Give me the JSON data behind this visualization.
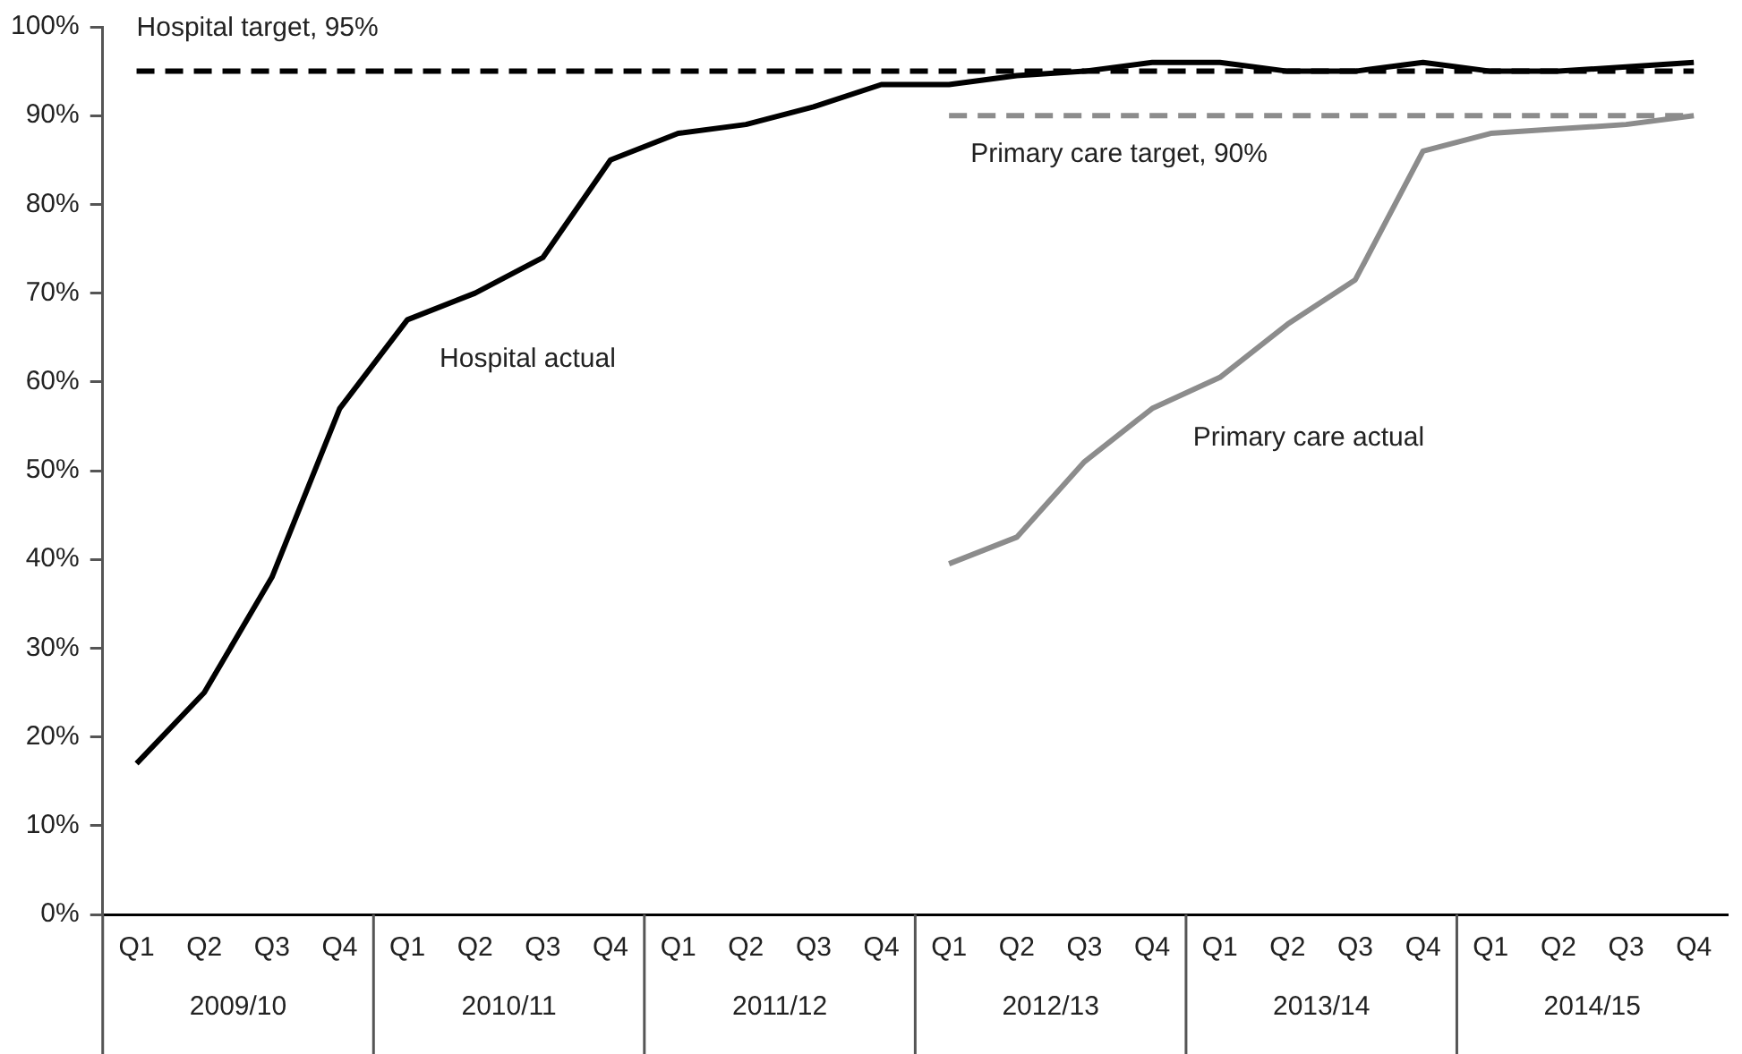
{
  "chart_data": {
    "type": "line",
    "categories": [
      "Q1",
      "Q2",
      "Q3",
      "Q4",
      "Q1",
      "Q2",
      "Q3",
      "Q4",
      "Q1",
      "Q2",
      "Q3",
      "Q4",
      "Q1",
      "Q2",
      "Q3",
      "Q4",
      "Q1",
      "Q2",
      "Q3",
      "Q4",
      "Q1",
      "Q2",
      "Q3",
      "Q4"
    ],
    "annotations": [
      "2009/10",
      "2010/11",
      "2011/12",
      "2012/13",
      "2013/14",
      "2014/15"
    ],
    "series": [
      {
        "name": "Hospital target, 95%",
        "color": "#000000",
        "line_style": "dashed",
        "values": [
          95,
          95,
          95,
          95,
          95,
          95,
          95,
          95,
          95,
          95,
          95,
          95,
          95,
          95,
          95,
          95,
          95,
          95,
          95,
          95,
          95,
          95,
          95,
          95
        ]
      },
      {
        "name": "Hospital actual",
        "color": "#000000",
        "line_style": "solid",
        "values": [
          17,
          25,
          38,
          57,
          67,
          70,
          74,
          85,
          88,
          89,
          91,
          93.5,
          93.5,
          94.5,
          95,
          96,
          96,
          95,
          95,
          96,
          95,
          95,
          95.5,
          96
        ]
      },
      {
        "name": "Primary care target, 90%",
        "color": "#8c8c8c",
        "line_style": "dashed",
        "values": [
          null,
          null,
          null,
          null,
          null,
          null,
          null,
          null,
          null,
          null,
          null,
          null,
          90,
          90,
          90,
          90,
          90,
          90,
          90,
          90,
          90,
          90,
          90,
          90
        ]
      },
      {
        "name": "Primary care actual",
        "color": "#8c8c8c",
        "line_style": "solid",
        "values": [
          null,
          null,
          null,
          null,
          null,
          null,
          null,
          null,
          null,
          null,
          null,
          null,
          39.5,
          42.5,
          51,
          57,
          60.5,
          66.5,
          71.5,
          86,
          88,
          88.5,
          89,
          90
        ]
      }
    ],
    "ylim": [
      0,
      100
    ],
    "yticks": [
      {
        "value": 0,
        "label": "0%"
      },
      {
        "value": 10,
        "label": "10%"
      },
      {
        "value": 20,
        "label": "20%"
      },
      {
        "value": 30,
        "label": "30%"
      },
      {
        "value": 40,
        "label": "40%"
      },
      {
        "value": 50,
        "label": "50%"
      },
      {
        "value": 60,
        "label": "60%"
      },
      {
        "value": 70,
        "label": "70%"
      },
      {
        "value": 80,
        "label": "80%"
      },
      {
        "value": 90,
        "label": "90%"
      },
      {
        "value": 100,
        "label": "100%"
      }
    ],
    "grid": false,
    "legend": false,
    "marker": "none"
  }
}
